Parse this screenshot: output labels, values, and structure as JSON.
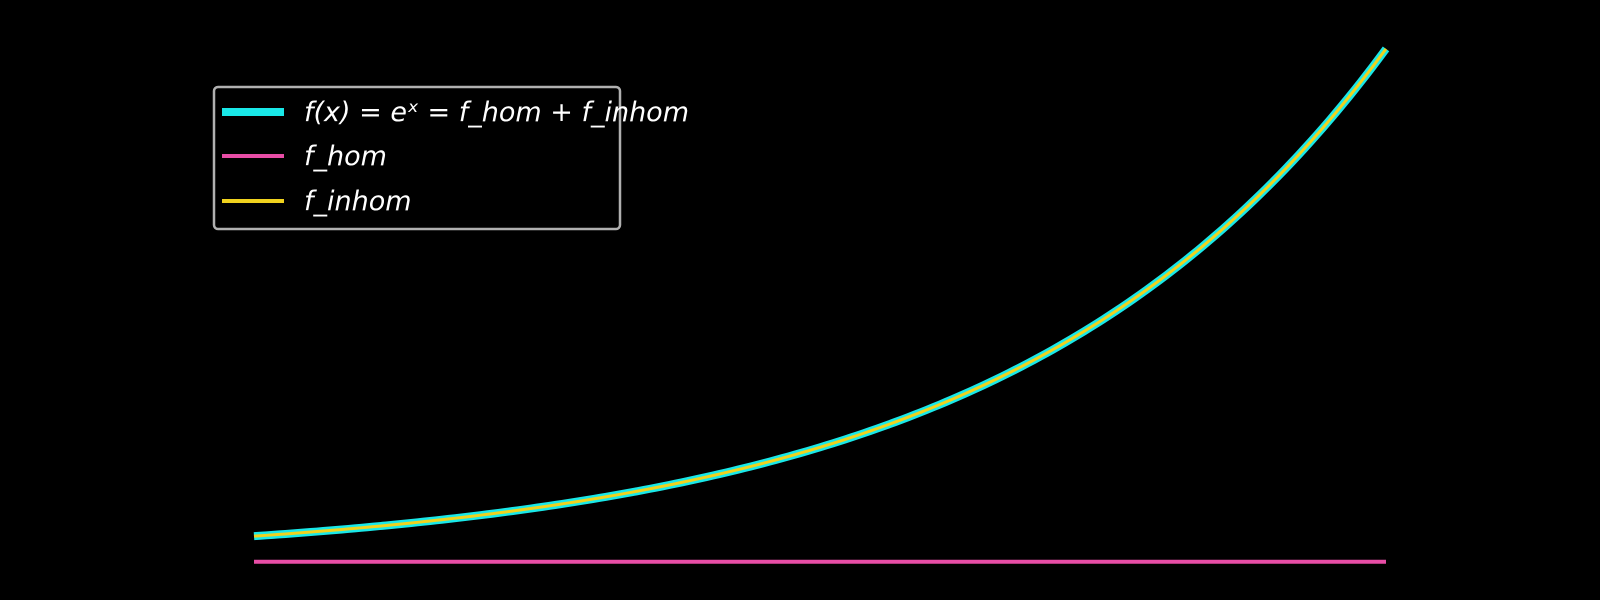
{
  "chart_data": {
    "type": "line",
    "title": "",
    "xlabel": "",
    "ylabel": "",
    "axes_visible": false,
    "grid": false,
    "background": "#000000",
    "legend": {
      "placement": "upper-left",
      "frame_color": "#b0b0b0",
      "entries": [
        {
          "label_text": "f(x) = eˣ = f_hom + f_inhom",
          "color": "#19e8e8",
          "series_index": 0
        },
        {
          "label_text": "f_hom",
          "color": "#e84da6",
          "series_index": 1
        },
        {
          "label_text": "f_inhom",
          "color": "#f0d21e",
          "series_index": 2
        }
      ]
    },
    "x": [
      0.0,
      0.2,
      0.4,
      0.6,
      0.8,
      1.0,
      1.2,
      1.4,
      1.6,
      1.8,
      2.0,
      2.2,
      2.4,
      2.6,
      2.8,
      3.0
    ],
    "xlim": [
      0,
      3
    ],
    "ylim": [
      -1.5,
      22
    ],
    "series": [
      {
        "color": "#19e8e8",
        "values": [
          1.0,
          1.221,
          1.492,
          1.822,
          2.226,
          2.718,
          3.32,
          4.055,
          4.953,
          6.05,
          7.389,
          9.025,
          11.023,
          13.464,
          16.445,
          20.086
        ]
      },
      {
        "color": "#e84da6",
        "values": [
          0.0,
          0.0,
          0.0,
          0.0,
          0.0,
          0.0,
          0.0,
          0.0,
          0.0,
          0.0,
          0.0,
          0.0,
          0.0,
          0.0,
          0.0,
          0.0
        ]
      },
      {
        "color": "#f0d21e",
        "values": [
          1.0,
          1.221,
          1.492,
          1.822,
          2.226,
          2.718,
          3.32,
          4.055,
          4.953,
          6.05,
          7.389,
          9.025,
          11.023,
          13.464,
          16.445,
          20.086
        ]
      }
    ]
  }
}
